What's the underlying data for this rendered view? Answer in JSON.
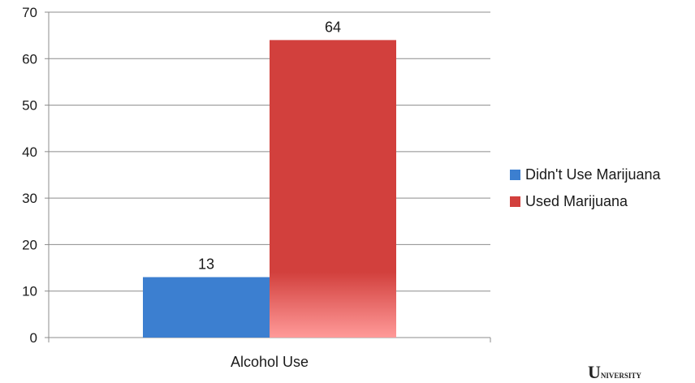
{
  "chart_data": {
    "type": "bar",
    "categories": [
      "Alcohol Use"
    ],
    "series": [
      {
        "name": "Didn't Use Marijuana",
        "values": [
          13
        ],
        "color": "#3c7fd0"
      },
      {
        "name": "Used Marijuana",
        "values": [
          64
        ],
        "color": "#d2403d"
      }
    ],
    "title": "",
    "xlabel": "",
    "ylabel": "",
    "ylim": [
      0,
      70
    ],
    "yticks": [
      0,
      10,
      20,
      30,
      40,
      50,
      60,
      70
    ],
    "grid": true,
    "legend": "right"
  },
  "watermark": {
    "initial": "U",
    "rest": "NIVERSITY"
  }
}
